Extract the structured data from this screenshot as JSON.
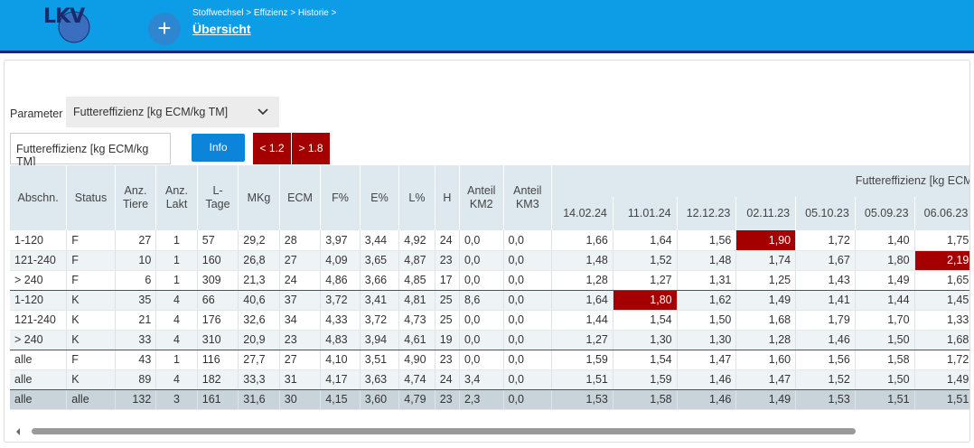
{
  "header": {
    "logo": "LKV",
    "add": "+",
    "breadcrumb": "Stoffwechsel > Effizienz > Historie >",
    "title": "Übersicht"
  },
  "filter": {
    "label": "Parameter",
    "selected": "Futtereffizienz [kg ECM/kg TM]",
    "parameter": "Futtereffizienz [kg ECM/kg TM]",
    "info": "Info",
    "low": "< 1.2",
    "high": "> 1.8"
  },
  "table": {
    "columns": [
      "Abschn.",
      "Status",
      "Anz. Tiere",
      "Anz. Lakt",
      "L-Tage",
      "MKg",
      "ECM",
      "F%",
      "E%",
      "L%",
      "H",
      "Anteil KM2",
      "Anteil KM3"
    ],
    "group": "Futtereffizienz [kg ECM/kg TM]",
    "dates": [
      "14.02.24",
      "11.01.24",
      "12.12.23",
      "02.11.23",
      "05.10.23",
      "05.09.23",
      "06.06.23"
    ],
    "rows": [
      [
        "1-120",
        "F",
        "27",
        "1",
        "57",
        "29,2",
        "28",
        "3,97",
        "3,44",
        "4,92",
        "24",
        "0,0",
        "0,0",
        "1,66",
        "1,64",
        "1,56",
        {
          "text": "1,90",
          "alert": true
        },
        "1,72",
        "1,40",
        "1,75"
      ],
      [
        "121-240",
        "F",
        "10",
        "1",
        "160",
        "26,8",
        "27",
        "4,09",
        "3,65",
        "4,87",
        "23",
        "0,0",
        "0,0",
        "1,48",
        "1,52",
        "1,48",
        "1,74",
        "1,67",
        "1,80",
        {
          "text": "2,19",
          "alert": true
        }
      ],
      [
        "> 240",
        "F",
        "6",
        "1",
        "309",
        "21,3",
        "24",
        "4,86",
        "3,66",
        "4,85",
        "17",
        "0,0",
        "0,0",
        "1,28",
        "1,27",
        "1,31",
        "1,25",
        "1,43",
        "1,49",
        "1,65"
      ],
      [
        "1-120",
        "K",
        "35",
        "4",
        "66",
        "40,6",
        "37",
        "3,72",
        "3,41",
        "4,81",
        "25",
        "8,6",
        "0,0",
        "1,64",
        {
          "text": "1,80",
          "alert": true
        },
        "1,62",
        "1,49",
        "1,41",
        "1,44",
        "1,45"
      ],
      [
        "121-240",
        "K",
        "21",
        "4",
        "176",
        "32,6",
        "34",
        "4,33",
        "3,72",
        "4,73",
        "25",
        "0,0",
        "0,0",
        "1,44",
        "1,54",
        "1,50",
        "1,68",
        "1,79",
        "1,70",
        "1,33"
      ],
      [
        "> 240",
        "K",
        "33",
        "4",
        "310",
        "20,9",
        "23",
        "4,83",
        "3,94",
        "4,61",
        "19",
        "0,0",
        "0,0",
        "1,27",
        "1,30",
        "1,30",
        "1,28",
        "1,46",
        "1,50",
        "1,68"
      ],
      [
        "alle",
        "F",
        "43",
        "1",
        "116",
        "27,7",
        "27",
        "4,10",
        "3,51",
        "4,90",
        "23",
        "0,0",
        "0,0",
        "1,59",
        "1,54",
        "1,47",
        "1,60",
        "1,56",
        "1,58",
        "1,72"
      ],
      [
        "alle",
        "K",
        "89",
        "4",
        "182",
        "33,3",
        "31",
        "4,17",
        "3,63",
        "4,74",
        "24",
        "3,4",
        "0,0",
        "1,51",
        "1,59",
        "1,46",
        "1,47",
        "1,52",
        "1,50",
        "1,49"
      ],
      [
        "alle",
        "alle",
        "132",
        "3",
        "161",
        "31,6",
        "30",
        "4,15",
        "3,60",
        "4,79",
        "23",
        "2,3",
        "0,0",
        "1,53",
        "1,58",
        "1,46",
        "1,49",
        "1,53",
        "1,51",
        "1,51"
      ]
    ]
  }
}
